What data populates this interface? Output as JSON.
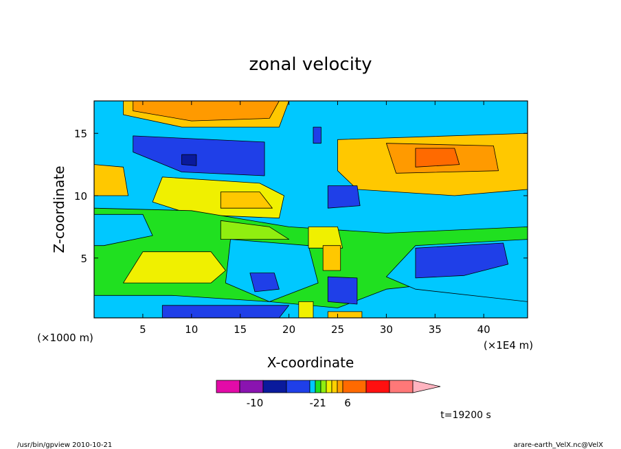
{
  "chart_data": {
    "type": "heatmap",
    "title": "zonal velocity",
    "xlabel": "X-coordinate",
    "ylabel": "Z-coordinate",
    "x_unit": "(×1E4 m)",
    "y_unit": "(×1000 m)",
    "xlim": [
      0,
      44.5
    ],
    "ylim": [
      0.2,
      17.6
    ],
    "x_ticks": [
      5,
      10,
      15,
      20,
      25,
      30,
      35,
      40
    ],
    "y_ticks": [
      5,
      10,
      15
    ],
    "grid": false,
    "time_label": "t=19200 s",
    "colorbar": {
      "colors": [
        "#e30ba8",
        "#8a14b0",
        "#0a1a9c",
        "#1f3fe8",
        "#00c8ff",
        "#20e020",
        "#90ee10",
        "#f0f000",
        "#ffd000",
        "#ffa000",
        "#ff6a00",
        "#ff1010",
        "#ff7878",
        "#ffb4c0"
      ],
      "tick_labels": [
        "-10",
        "-2",
        "1",
        "6"
      ]
    },
    "regions": [
      {
        "level": "light-orange",
        "color": "#ffc800",
        "points": [
          [
            3,
            17.6
          ],
          [
            20,
            17.6
          ],
          [
            19,
            15.5
          ],
          [
            9,
            15.5
          ],
          [
            3,
            16.5
          ]
        ]
      },
      {
        "level": "orange",
        "color": "#ff9a00",
        "points": [
          [
            4,
            17.6
          ],
          [
            19,
            17.6
          ],
          [
            18,
            16.2
          ],
          [
            10,
            16
          ],
          [
            4,
            16.8
          ]
        ]
      },
      {
        "level": "light-orange",
        "color": "#ffc800",
        "points": [
          [
            25,
            14.5
          ],
          [
            44.5,
            15
          ],
          [
            44.5,
            10.5
          ],
          [
            37,
            10
          ],
          [
            27,
            10.5
          ],
          [
            25,
            12
          ]
        ]
      },
      {
        "level": "orange",
        "color": "#ff9a00",
        "points": [
          [
            30,
            14.2
          ],
          [
            41,
            14
          ],
          [
            41.5,
            12
          ],
          [
            31,
            11.8
          ]
        ]
      },
      {
        "level": "dark-orange",
        "color": "#ff6a00",
        "points": [
          [
            33,
            13.8
          ],
          [
            37,
            13.8
          ],
          [
            37.5,
            12.5
          ],
          [
            33,
            12.3
          ]
        ]
      },
      {
        "level": "light-orange",
        "color": "#ffc800",
        "points": [
          [
            0,
            12.5
          ],
          [
            3,
            12.3
          ],
          [
            3.5,
            10
          ],
          [
            0,
            10
          ]
        ]
      },
      {
        "level": "blue",
        "color": "#1f3fe8",
        "points": [
          [
            4,
            14.8
          ],
          [
            17.5,
            14.3
          ],
          [
            17.5,
            11.6
          ],
          [
            9,
            11.9
          ],
          [
            4,
            13.5
          ]
        ]
      },
      {
        "level": "dark-blue",
        "color": "#0a1a9c",
        "points": [
          [
            9,
            13.3
          ],
          [
            10.5,
            13.3
          ],
          [
            10.5,
            12.4
          ],
          [
            9,
            12.5
          ]
        ]
      },
      {
        "level": "yellow",
        "color": "#f0f000",
        "points": [
          [
            7,
            11.5
          ],
          [
            17,
            11
          ],
          [
            19.5,
            10
          ],
          [
            19,
            8.2
          ],
          [
            10,
            8.5
          ],
          [
            6,
            9.5
          ]
        ]
      },
      {
        "level": "light-orange",
        "color": "#ffc800",
        "points": [
          [
            13,
            10.3
          ],
          [
            17,
            10.3
          ],
          [
            18.3,
            9
          ],
          [
            13,
            9
          ]
        ]
      },
      {
        "level": "blue",
        "color": "#1f3fe8",
        "points": [
          [
            24,
            10.8
          ],
          [
            27,
            10.8
          ],
          [
            27.3,
            9.2
          ],
          [
            24,
            9
          ]
        ]
      },
      {
        "level": "green",
        "color": "#20e020",
        "points": [
          [
            0,
            9
          ],
          [
            10,
            8.8
          ],
          [
            20,
            7.5
          ],
          [
            30,
            7
          ],
          [
            44.5,
            7.5
          ],
          [
            44.5,
            4
          ],
          [
            36,
            3
          ],
          [
            30,
            2.5
          ],
          [
            25,
            1
          ],
          [
            18,
            1.5
          ],
          [
            8,
            2
          ],
          [
            0,
            2
          ]
        ]
      },
      {
        "level": "light-green",
        "color": "#90ee10",
        "points": [
          [
            13,
            8
          ],
          [
            18,
            7.5
          ],
          [
            20,
            6.5
          ],
          [
            13,
            6.5
          ]
        ]
      },
      {
        "level": "cyan",
        "color": "#00c8ff",
        "points": [
          [
            0,
            8.5
          ],
          [
            5,
            8.5
          ],
          [
            6,
            6.8
          ],
          [
            1,
            6
          ],
          [
            0,
            6
          ]
        ]
      },
      {
        "level": "cyan",
        "color": "#00c8ff",
        "points": [
          [
            14,
            6.5
          ],
          [
            22,
            6
          ],
          [
            23,
            3
          ],
          [
            18,
            1.5
          ],
          [
            13.5,
            3
          ]
        ]
      },
      {
        "level": "yellow",
        "color": "#f0f000",
        "points": [
          [
            5,
            5.5
          ],
          [
            12,
            5.5
          ],
          [
            13.5,
            4
          ],
          [
            12,
            3
          ],
          [
            3,
            3
          ]
        ]
      },
      {
        "level": "yellow",
        "color": "#f0f000",
        "points": [
          [
            22,
            7.5
          ],
          [
            25,
            7.5
          ],
          [
            25.5,
            5.8
          ],
          [
            22,
            5.8
          ]
        ]
      },
      {
        "level": "light-orange",
        "color": "#ffc800",
        "points": [
          [
            23.5,
            6
          ],
          [
            25.3,
            6
          ],
          [
            25.3,
            4
          ],
          [
            23.5,
            4
          ]
        ]
      },
      {
        "level": "cyan",
        "color": "#00c8ff",
        "points": [
          [
            33,
            6
          ],
          [
            44.5,
            6.5
          ],
          [
            44.5,
            1.5
          ],
          [
            33,
            2.5
          ],
          [
            30,
            3.5
          ]
        ]
      },
      {
        "level": "blue",
        "color": "#1f3fe8",
        "points": [
          [
            33,
            5.8
          ],
          [
            42,
            6.2
          ],
          [
            42.5,
            4.5
          ],
          [
            38,
            3.6
          ],
          [
            33,
            3.4
          ]
        ]
      },
      {
        "level": "blue",
        "color": "#1f3fe8",
        "points": [
          [
            24,
            3.5
          ],
          [
            27,
            3.4
          ],
          [
            27,
            1.3
          ],
          [
            24,
            1.5
          ]
        ]
      },
      {
        "level": "blue",
        "color": "#1f3fe8",
        "points": [
          [
            16,
            3.8
          ],
          [
            18.5,
            3.8
          ],
          [
            19,
            2.5
          ],
          [
            16.5,
            2.3
          ]
        ]
      },
      {
        "level": "blue",
        "color": "#1f3fe8",
        "points": [
          [
            7,
            1.2
          ],
          [
            20,
            1.2
          ],
          [
            19,
            0.2
          ],
          [
            7,
            0.2
          ]
        ]
      },
      {
        "level": "yellow",
        "color": "#f0f000",
        "points": [
          [
            21,
            1.5
          ],
          [
            22.5,
            1.5
          ],
          [
            22.5,
            0.2
          ],
          [
            21,
            0.2
          ]
        ]
      },
      {
        "level": "light-orange",
        "color": "#ffc800",
        "points": [
          [
            24,
            0.7
          ],
          [
            27.5,
            0.7
          ],
          [
            27.5,
            0.2
          ],
          [
            24,
            0.2
          ]
        ]
      },
      {
        "level": "blue",
        "color": "#1f3fe8",
        "points": [
          [
            22.5,
            15.5
          ],
          [
            23.3,
            15.5
          ],
          [
            23.3,
            14.2
          ],
          [
            22.5,
            14.2
          ]
        ]
      }
    ]
  },
  "footer": {
    "left": "/usr/bin/gpview  2010-10-21",
    "right": "arare-earth_VelX.nc@VelX"
  }
}
